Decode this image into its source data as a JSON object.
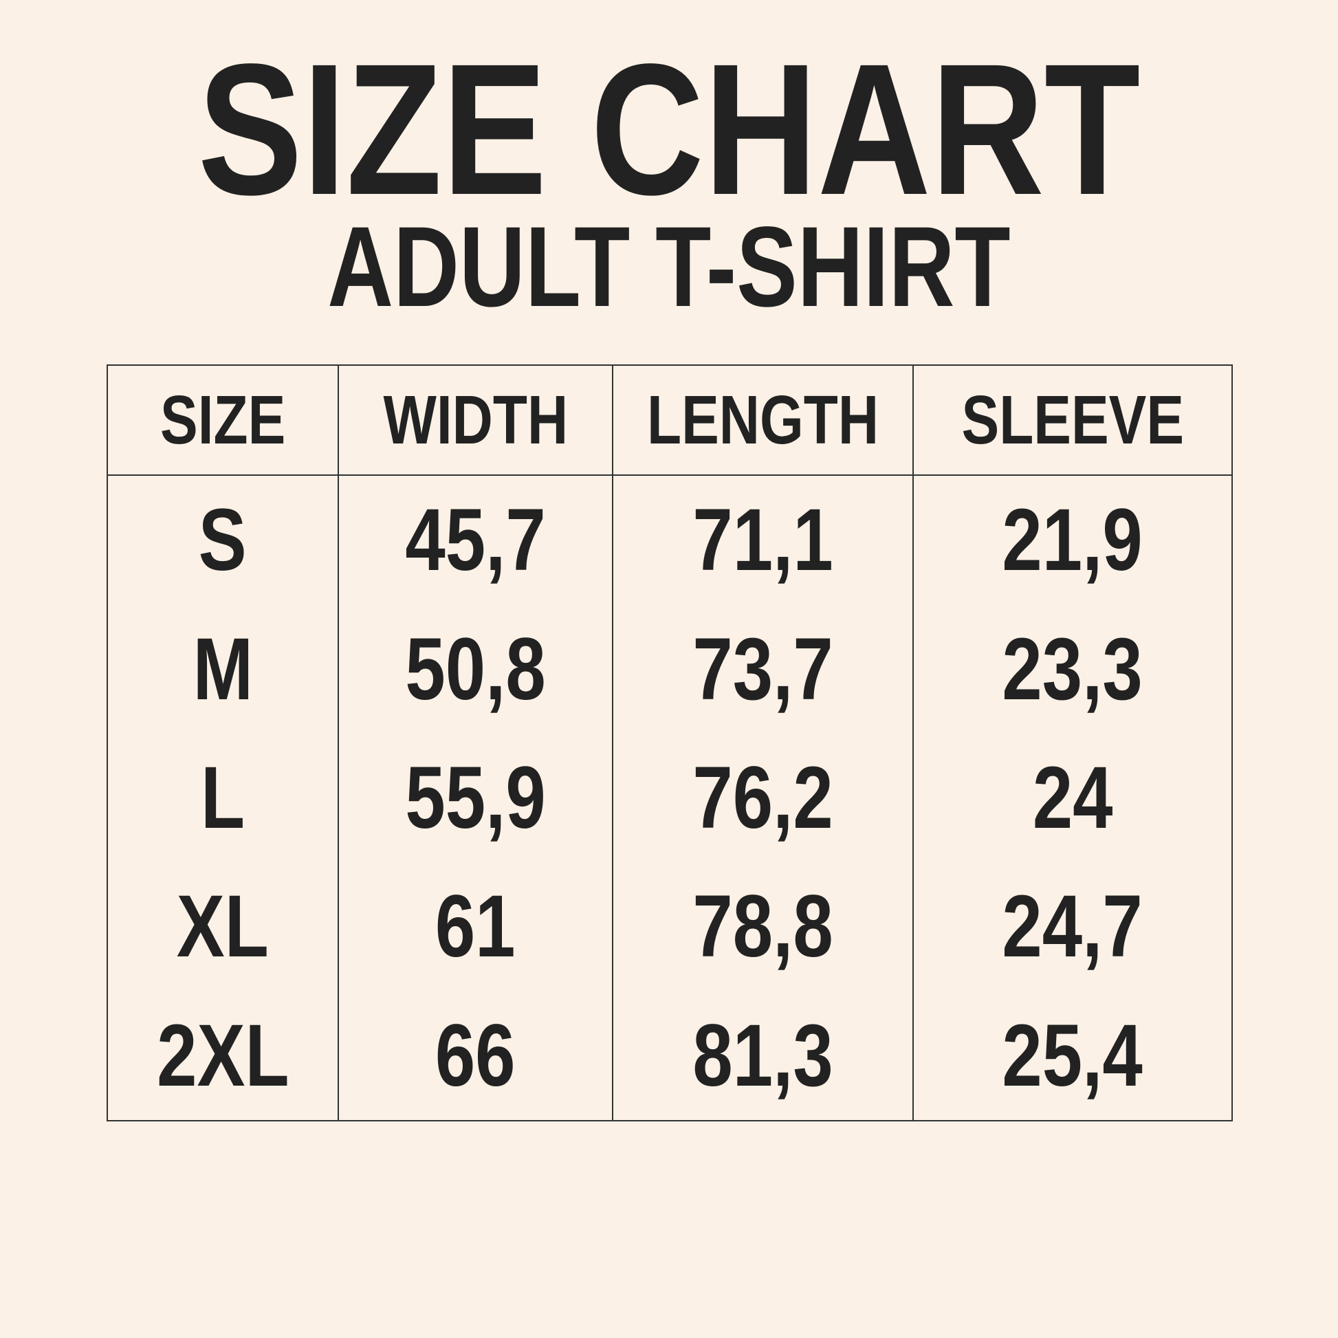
{
  "title": "SIZE CHART",
  "subtitle": "ADULT T-SHIRT",
  "table": {
    "headers": [
      "SIZE",
      "WIDTH",
      "LENGTH",
      "SLEEVE"
    ],
    "rows": [
      [
        "S",
        "45,7",
        "71,1",
        "21,9"
      ],
      [
        "M",
        "50,8",
        "73,7",
        "23,3"
      ],
      [
        "L",
        "55,9",
        "76,2",
        "24"
      ],
      [
        "XL",
        "61",
        "78,8",
        "24,7"
      ],
      [
        "2XL",
        "66",
        "81,3",
        "25,4"
      ]
    ]
  },
  "colors": {
    "background": "#fbf1e6",
    "text": "#222222"
  }
}
